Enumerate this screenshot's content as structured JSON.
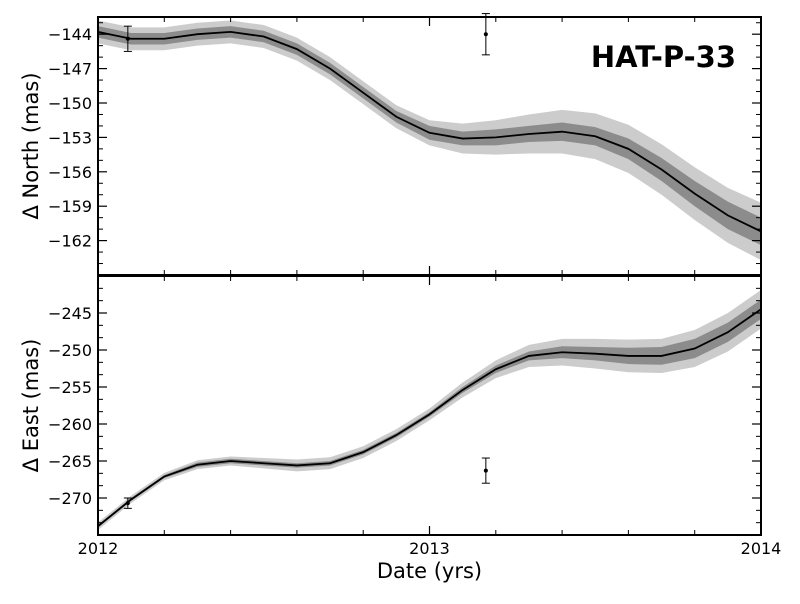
{
  "chart_data": {
    "type": "line",
    "title": "HAT-P-33",
    "xlabel": "Date (yrs)",
    "xlim": [
      2012,
      2014
    ],
    "x_ticks": [
      2012,
      2013,
      2014
    ],
    "x_tick_labels": [
      "2012",
      "2013",
      "2014"
    ],
    "panels": [
      {
        "id": "north",
        "ylabel": "Δ North (mas)",
        "ylim": [
          -165,
          -142.5
        ],
        "y_ticks": [
          -144,
          -147,
          -150,
          -153,
          -156,
          -159,
          -162
        ],
        "y_tick_labels": [
          "−144",
          "−147",
          "−150",
          "−153",
          "−156",
          "−159",
          "−162"
        ],
        "model": {
          "x": [
            2012.0,
            2012.1,
            2012.2,
            2012.3,
            2012.4,
            2012.5,
            2012.6,
            2012.7,
            2012.8,
            2012.9,
            2013.0,
            2013.1,
            2013.2,
            2013.3,
            2013.4,
            2013.5,
            2013.6,
            2013.7,
            2013.8,
            2013.9,
            2014.0
          ],
          "y": [
            -143.8,
            -144.4,
            -144.4,
            -144.0,
            -143.8,
            -144.2,
            -145.3,
            -147.0,
            -149.1,
            -151.2,
            -152.6,
            -153.1,
            -153.0,
            -152.7,
            -152.5,
            -152.9,
            -154.0,
            -155.8,
            -157.9,
            -159.8,
            -161.2
          ],
          "inner": [
            0.5,
            0.5,
            0.5,
            0.5,
            0.5,
            0.5,
            0.5,
            0.5,
            0.5,
            0.5,
            0.6,
            0.6,
            0.7,
            0.7,
            0.8,
            0.8,
            0.9,
            1.0,
            1.1,
            1.2,
            1.2
          ],
          "outer": [
            1.0,
            1.0,
            1.0,
            1.0,
            1.0,
            1.0,
            1.0,
            1.0,
            1.0,
            1.0,
            1.1,
            1.3,
            1.5,
            1.7,
            1.9,
            2.0,
            2.1,
            2.2,
            2.3,
            2.4,
            2.5
          ]
        },
        "points": [
          {
            "x": 2012.09,
            "y": -144.4,
            "err": 1.1
          },
          {
            "x": 2013.17,
            "y": -144.0,
            "err": 1.8
          }
        ]
      },
      {
        "id": "east",
        "ylabel": "Δ East (mas)",
        "ylim": [
          -275,
          -240
        ],
        "y_ticks": [
          -245,
          -250,
          -255,
          -260,
          -265,
          -270
        ],
        "y_tick_labels": [
          "−245",
          "−250",
          "−255",
          "−260",
          "−265",
          "−270"
        ],
        "model": {
          "x": [
            2012.0,
            2012.1,
            2012.2,
            2012.3,
            2012.4,
            2012.5,
            2012.6,
            2012.7,
            2012.8,
            2012.9,
            2013.0,
            2013.1,
            2013.2,
            2013.3,
            2013.4,
            2013.5,
            2013.6,
            2013.7,
            2013.8,
            2013.9,
            2014.0
          ],
          "y": [
            -273.8,
            -270.2,
            -267.1,
            -265.5,
            -265.0,
            -265.3,
            -265.6,
            -265.3,
            -263.8,
            -261.5,
            -258.7,
            -255.4,
            -252.6,
            -250.8,
            -250.3,
            -250.5,
            -250.8,
            -250.8,
            -249.8,
            -247.6,
            -244.5
          ],
          "inner": [
            0.2,
            0.2,
            0.2,
            0.3,
            0.3,
            0.3,
            0.3,
            0.3,
            0.3,
            0.3,
            0.3,
            0.4,
            0.5,
            0.6,
            0.8,
            0.9,
            1.1,
            1.2,
            1.3,
            1.3,
            1.3
          ],
          "outer": [
            0.5,
            0.5,
            0.5,
            0.6,
            0.6,
            0.7,
            0.8,
            0.8,
            0.8,
            0.8,
            0.8,
            1.0,
            1.2,
            1.5,
            1.8,
            2.0,
            2.2,
            2.3,
            2.5,
            2.6,
            2.6
          ]
        },
        "points": [
          {
            "x": 2012.09,
            "y": -270.7,
            "err": 0.7
          },
          {
            "x": 2013.17,
            "y": -266.3,
            "err": 1.7
          }
        ]
      }
    ],
    "colors": {
      "outer_band": "#cccccc",
      "inner_band": "#8c8c8c",
      "model_line": "#000000",
      "points": "#000000"
    }
  }
}
